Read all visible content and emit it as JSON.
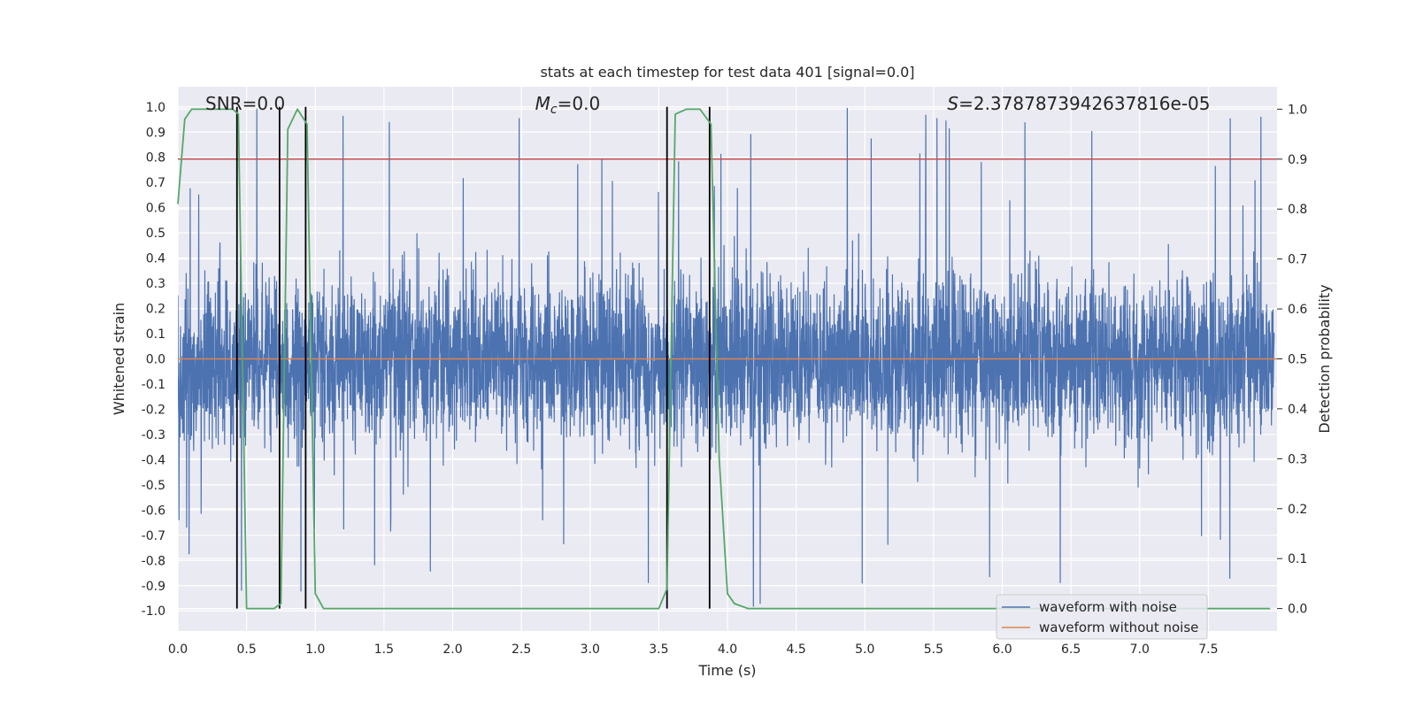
{
  "chart_data": {
    "type": "line",
    "title": "stats at each timestep for test data 401 [signal=0.0]",
    "xlabel": "Time (s)",
    "ylabel": "Whitened strain",
    "y2label": "Detection probability",
    "xlim": [
      0.0,
      8.0
    ],
    "ylim": [
      -1.08,
      1.08
    ],
    "y2lim": [
      -0.045,
      1.045
    ],
    "grid": true,
    "legend_position": "bottom-right",
    "x_ticks": [
      "0.0",
      "0.5",
      "1.0",
      "1.5",
      "2.0",
      "2.5",
      "3.0",
      "3.5",
      "4.0",
      "4.5",
      "5.0",
      "5.5",
      "6.0",
      "6.5",
      "7.0",
      "7.5"
    ],
    "y_ticks": [
      "1.0",
      "0.9",
      "0.8",
      "0.7",
      "0.6",
      "0.5",
      "0.4",
      "0.3",
      "0.2",
      "0.1",
      "0.0",
      "-0.1",
      "-0.2",
      "-0.3",
      "-0.4",
      "-0.5",
      "-0.6",
      "-0.7",
      "-0.8",
      "-0.9",
      "-1.0"
    ],
    "y2_ticks": [
      "1.0",
      "0.9",
      "0.8",
      "0.7",
      "0.6",
      "0.5",
      "0.4",
      "0.3",
      "0.2",
      "0.1",
      "0.0"
    ],
    "annotations": [
      {
        "prefix": "SNR",
        "text": "=0.0",
        "x": 0.2
      },
      {
        "prefix": "M",
        "sub": "c",
        "text": "=0.0",
        "x": 2.6
      },
      {
        "prefix": "S",
        "text": "=2.3787873942637816e-05",
        "x": 5.6
      }
    ],
    "series": [
      {
        "name": "waveform with noise",
        "color": "#4c72b0",
        "axis": "left",
        "description_range": [
          -1.0,
          1.0
        ]
      },
      {
        "name": "waveform without noise",
        "color": "#dd8452",
        "axis": "left",
        "values_constant": 0.0
      },
      {
        "axis": "right",
        "color": "#55a868",
        "x": [
          0.0,
          0.05,
          0.1,
          0.2,
          0.3,
          0.4,
          0.44,
          0.5,
          0.55,
          0.6,
          0.7,
          0.75,
          0.8,
          0.87,
          0.94,
          1.0,
          1.06,
          1.2,
          2.0,
          3.0,
          3.5,
          3.56,
          3.62,
          3.7,
          3.8,
          3.88,
          3.94,
          4.0,
          4.05,
          4.15,
          5.0,
          6.0,
          7.0,
          7.95
        ],
        "values": [
          0.81,
          0.98,
          1.0,
          1.0,
          1.0,
          1.0,
          0.99,
          0.0,
          0.0,
          0.0,
          0.0,
          0.01,
          0.96,
          1.0,
          0.97,
          0.03,
          0.0,
          0.0,
          0.0,
          0.0,
          0.0,
          0.04,
          0.99,
          1.0,
          1.0,
          0.97,
          0.3,
          0.03,
          0.01,
          0.0,
          0.0,
          0.0,
          0.0,
          0.0
        ]
      }
    ],
    "threshold_line": {
      "axis": "right",
      "value": 0.9,
      "color": "#c44e52"
    },
    "vertical_lines": [
      0.43,
      0.74,
      0.93,
      3.56,
      3.87
    ]
  },
  "legend": {
    "noise_label": "waveform with noise",
    "clean_label": "waveform without noise"
  }
}
